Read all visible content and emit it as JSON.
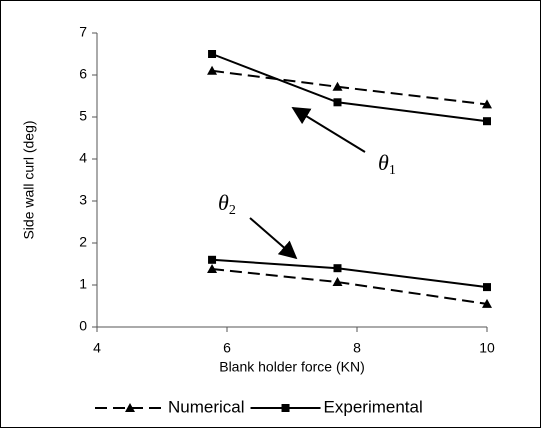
{
  "chart_data": {
    "type": "line",
    "xlabel": "Blank holder force (KN)",
    "ylabel": "Side wall curl (deg)",
    "x": [
      5.77,
      7.7,
      10
    ],
    "xlim": [
      4,
      10
    ],
    "xticks": [
      4,
      6,
      8,
      10
    ],
    "ylim": [
      0,
      7
    ],
    "yticks": [
      0,
      1,
      2,
      3,
      4,
      5,
      6,
      7
    ],
    "series": [
      {
        "name": "Numerical",
        "color": "#000000",
        "dashed": true,
        "marker": "triangle",
        "curves": [
          [
            6.1,
            5.72,
            5.3
          ],
          [
            1.38,
            1.07,
            0.55
          ]
        ]
      },
      {
        "name": "Experimental",
        "color": "#000000",
        "dashed": false,
        "marker": "square",
        "curves": [
          [
            6.5,
            5.35,
            4.9
          ],
          [
            1.6,
            1.4,
            0.95
          ]
        ]
      }
    ],
    "annotations": [
      {
        "symbol": "θ",
        "subscript": "1"
      },
      {
        "symbol": "θ",
        "subscript": "2"
      }
    ]
  }
}
